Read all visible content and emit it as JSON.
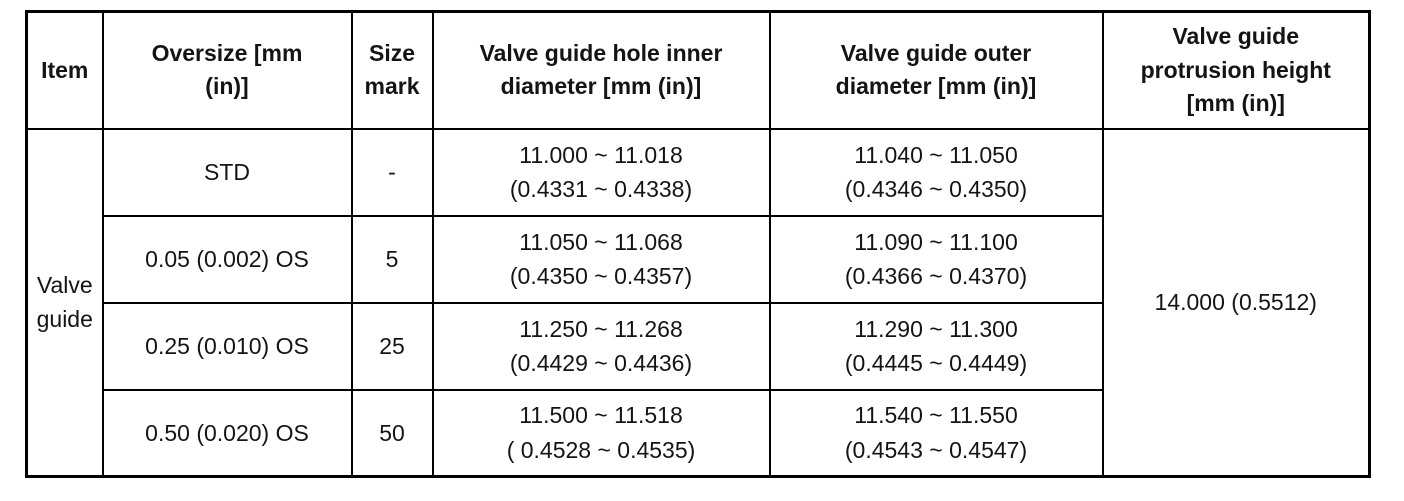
{
  "table": {
    "headers": {
      "item": "Item",
      "oversize": "Oversize [mm\n(in)]",
      "size_mark": "Size\nmark",
      "inner_diameter": "Valve guide hole inner\ndiameter [mm (in)]",
      "outer_diameter": "Valve guide outer\ndiameter [mm (in)]",
      "protrusion_height": "Valve guide\nprotrusion height\n[mm (in)]"
    },
    "item_label": "Valve\nguide",
    "protrusion_value": "14.000 (0.5512)",
    "rows": [
      {
        "oversize": "STD",
        "size_mark": "-",
        "inner": "11.000 ~ 11.018\n(0.4331 ~ 0.4338)",
        "outer": "11.040 ~ 11.050\n(0.4346 ~ 0.4350)"
      },
      {
        "oversize": "0.05 (0.002) OS",
        "size_mark": "5",
        "inner": "11.050 ~ 11.068\n(0.4350 ~ 0.4357)",
        "outer": "11.090 ~ 11.100\n(0.4366 ~ 0.4370)"
      },
      {
        "oversize": "0.25 (0.010) OS",
        "size_mark": "25",
        "inner": "11.250 ~ 11.268\n(0.4429 ~ 0.4436)",
        "outer": "11.290 ~ 11.300\n(0.4445 ~ 0.4449)"
      },
      {
        "oversize": "0.50 (0.020) OS",
        "size_mark": "50",
        "inner": "11.500 ~ 11.518\n( 0.4528 ~ 0.4535)",
        "outer": "11.540 ~ 11.550\n(0.4543 ~ 0.4547)"
      }
    ],
    "colors": {
      "border": "#000000",
      "text": "#141414",
      "background": "#ffffff"
    }
  }
}
